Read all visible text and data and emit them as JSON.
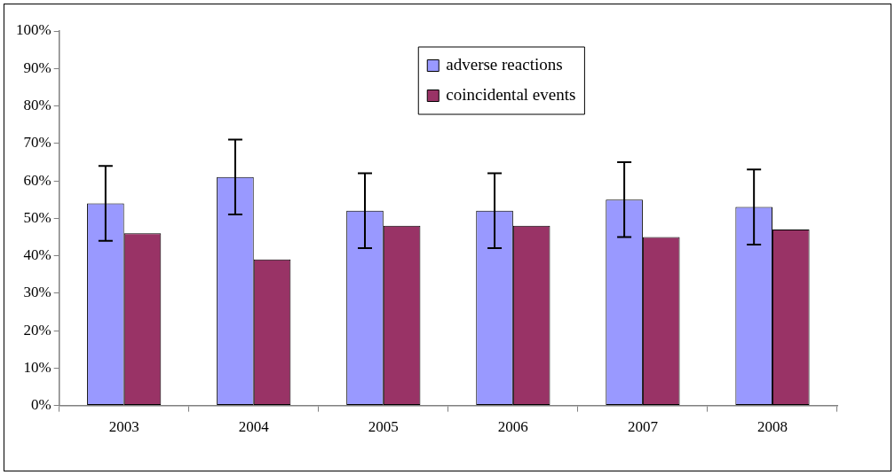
{
  "chart_data": {
    "type": "bar",
    "categories": [
      "2003",
      "2004",
      "2005",
      "2006",
      "2007",
      "2008"
    ],
    "series": [
      {
        "name": "adverse reactions",
        "color": "#9999ff",
        "values": [
          54,
          61,
          52,
          52,
          55,
          53
        ],
        "errors": [
          10,
          10,
          10,
          10,
          10,
          10
        ]
      },
      {
        "name": "coincidental events",
        "color": "#993366",
        "values": [
          46,
          39,
          48,
          48,
          45,
          47
        ]
      }
    ],
    "ylim": [
      0,
      100
    ],
    "yticks": [
      {
        "value": 0,
        "label": "0%"
      },
      {
        "value": 10,
        "label": "10%"
      },
      {
        "value": 20,
        "label": "20%"
      },
      {
        "value": 30,
        "label": "30%"
      },
      {
        "value": 40,
        "label": "40%"
      },
      {
        "value": 50,
        "label": "50%"
      },
      {
        "value": 60,
        "label": "60%"
      },
      {
        "value": 70,
        "label": "70%"
      },
      {
        "value": 80,
        "label": "80%"
      },
      {
        "value": 90,
        "label": "90%"
      },
      {
        "value": 100,
        "label": "100%"
      }
    ],
    "grid": false,
    "legend": "top"
  }
}
